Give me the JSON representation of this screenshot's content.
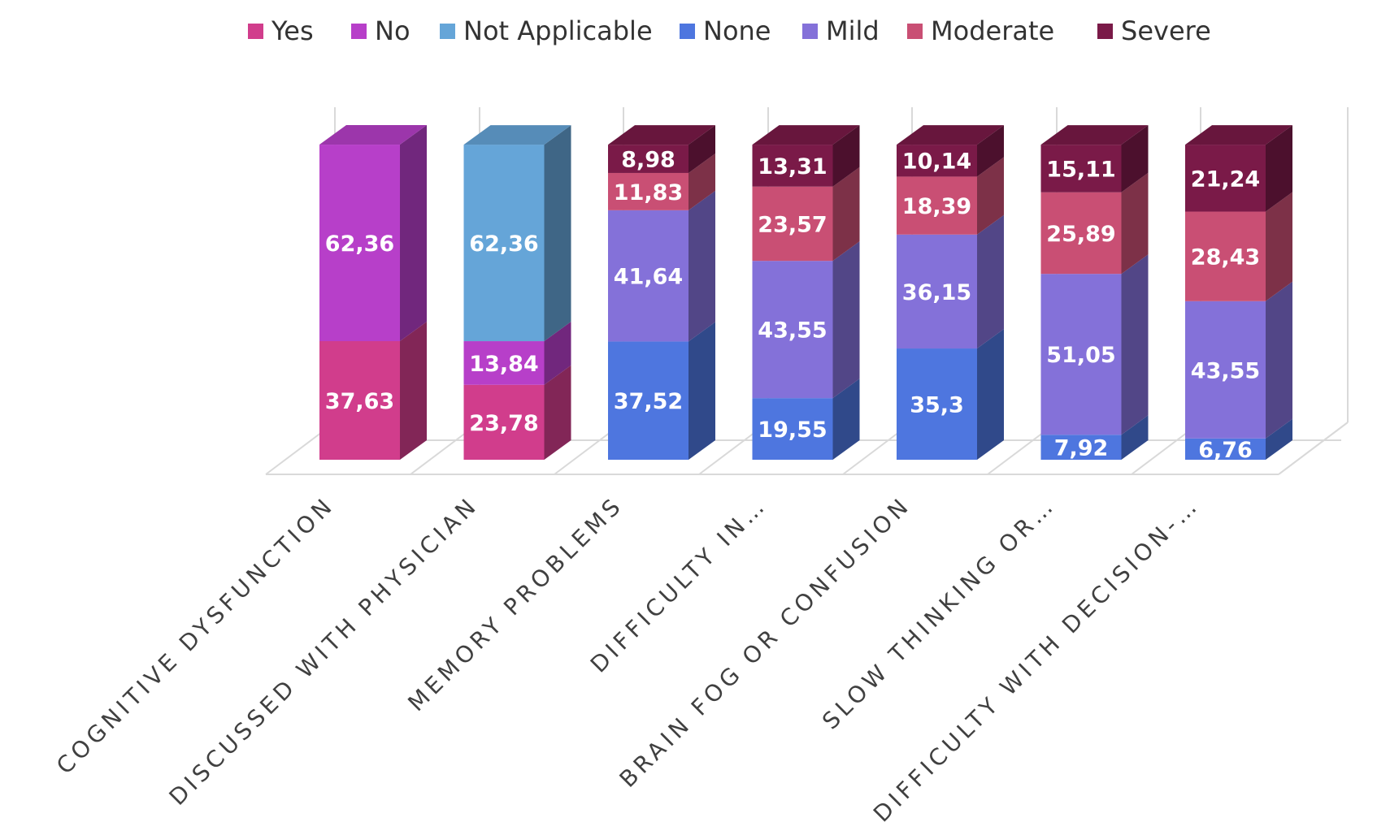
{
  "chart_data": {
    "type": "bar",
    "stacked": true,
    "three_d": true,
    "legend_position": "top",
    "categories": [
      "COGNITIVE DYSFUNCTION",
      "DISCUSSED WITH PHYSICIAN",
      "MEMORY PROBLEMS",
      "DIFFICULTY IN…",
      "BRAIN FOG OR CONFUSION",
      "SLOW THINKING OR…",
      "DIFFICULTY WITH DECISION-…"
    ],
    "series": [
      {
        "name": "Yes",
        "color": "#D13D8C",
        "values": [
          37.63,
          23.78,
          null,
          null,
          null,
          null,
          null
        ],
        "labels": [
          "37,63",
          "23,78",
          "",
          "",
          "",
          "",
          ""
        ]
      },
      {
        "name": "No",
        "color": "#B73FC9",
        "values": [
          62.36,
          13.84,
          null,
          null,
          null,
          null,
          null
        ],
        "labels": [
          "62,36",
          "13,84",
          "",
          "",
          "",
          "",
          ""
        ]
      },
      {
        "name": "Not Applicable",
        "color": "#65A5D8",
        "values": [
          null,
          62.36,
          null,
          null,
          null,
          null,
          null
        ],
        "labels": [
          "",
          "62,36",
          "",
          "",
          "",
          "",
          ""
        ]
      },
      {
        "name": "None",
        "color": "#4E76DF",
        "values": [
          null,
          null,
          37.52,
          19.55,
          35.3,
          7.92,
          6.76
        ],
        "labels": [
          "",
          "",
          "37,52",
          "19,55",
          "35,3",
          "7,92",
          "6,76"
        ]
      },
      {
        "name": "Mild",
        "color": "#8471D9",
        "values": [
          null,
          null,
          41.64,
          43.55,
          36.15,
          51.05,
          43.55
        ],
        "labels": [
          "",
          "",
          "41,64",
          "43,55",
          "36,15",
          "51,05",
          "43,55"
        ]
      },
      {
        "name": "Moderate",
        "color": "#C94F74",
        "values": [
          null,
          null,
          11.83,
          23.57,
          18.39,
          25.89,
          28.43
        ],
        "labels": [
          "",
          "",
          "11,83",
          "23,57",
          "18,39",
          "25,89",
          "28,43"
        ]
      },
      {
        "name": "Severe",
        "color": "#7A1A48",
        "values": [
          null,
          null,
          8.98,
          13.31,
          10.14,
          15.11,
          21.24
        ],
        "labels": [
          "",
          "",
          "8,98",
          "13,31",
          "10,14",
          "15,11",
          "21,24"
        ]
      }
    ],
    "ylim": [
      0,
      100
    ],
    "title": "",
    "xlabel": "",
    "ylabel": ""
  }
}
